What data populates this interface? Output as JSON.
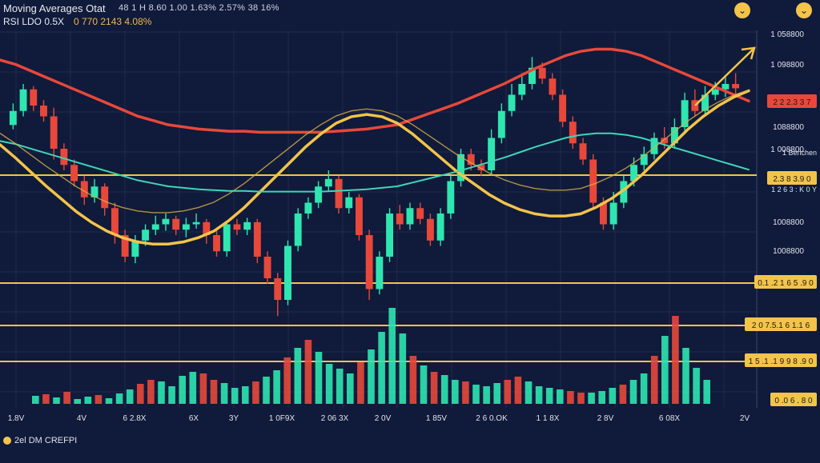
{
  "header": {
    "title": "Moving Averages Otat",
    "stats": "48 1 H 8.60 1.00   1.63% 2.57% 38 16%",
    "rsi_label": "RSI LDO 0.5X",
    "rsi_value": "0 770 2143 4.08%"
  },
  "icons": {
    "chevron": "chevron-down-icon",
    "chevron_glyph": "⌄"
  },
  "footer": {
    "label": "2el DM CREFPI"
  },
  "colors": {
    "background": "#101a3a",
    "bull": "#2ee6b0",
    "bear": "#e8483a",
    "ma_yellow": "#f3c44a",
    "ma_red": "#e8483a",
    "ma_teal": "#3fd6b8",
    "grid": "#1f2a4f",
    "level": "#f3c44a",
    "badge_red": "#e8483a",
    "badge_yellow": "#f3c44a"
  },
  "chart_data": {
    "type": "candlestick",
    "price_axis_labels": [
      "1 058800",
      "1 098800",
      "1088800",
      "1 008800",
      "1008800",
      "1008800"
    ],
    "time_axis_labels": [
      "1.8V",
      "4V",
      "6 2.8X",
      "6X",
      "3Y",
      "1 0F9X",
      "2 06 3X",
      "2 0V",
      "1 85V",
      "2 6 0.OK",
      "1 1 8X",
      "2 8V",
      "6 08X",
      "2V"
    ],
    "price_badges": [
      {
        "text": "2 2 2.3 3 7",
        "kind": "red"
      },
      {
        "text": "2.3 8 3.9 0",
        "kind": "yellow"
      },
      {
        "text": "0.1 .2 1 6 5 .9 0",
        "kind": "yellow"
      },
      {
        "text": "2 0 7.5.1 6 1.1 6",
        "kind": "yellow"
      },
      {
        "text": "1 5 .1 .1 9 9 8 .9 0",
        "kind": "yellow"
      },
      {
        "text": "0 .0 6 . 8 0",
        "kind": "yellow"
      }
    ],
    "side_label": "1 Benchen",
    "side_label2": "1 2 6 3 : K 0 Y",
    "candles": [
      [
        62,
        75,
        58,
        82,
        "b"
      ],
      [
        75,
        95,
        70,
        100,
        "b"
      ],
      [
        95,
        80,
        75,
        98,
        "r"
      ],
      [
        80,
        70,
        65,
        85,
        "r"
      ],
      [
        70,
        40,
        30,
        78,
        "r"
      ],
      [
        40,
        25,
        20,
        45,
        "r"
      ],
      [
        25,
        10,
        5,
        30,
        "r"
      ],
      [
        10,
        -5,
        -12,
        15,
        "r"
      ],
      [
        -5,
        5,
        -10,
        12,
        "b"
      ],
      [
        5,
        -15,
        -22,
        8,
        "r"
      ],
      [
        -15,
        -40,
        -48,
        -10,
        "r"
      ],
      [
        -40,
        -60,
        -65,
        -35,
        "r"
      ],
      [
        -60,
        -45,
        -66,
        -40,
        "b"
      ],
      [
        -45,
        -35,
        -50,
        -30,
        "b"
      ],
      [
        -35,
        -30,
        -40,
        -22,
        "b"
      ],
      [
        -30,
        -25,
        -36,
        -20,
        "b"
      ],
      [
        -25,
        -35,
        -40,
        -22,
        "r"
      ],
      [
        -35,
        -30,
        -42,
        -24,
        "b"
      ],
      [
        -30,
        -28,
        -34,
        -20,
        "b"
      ],
      [
        -28,
        -40,
        -48,
        -25,
        "r"
      ],
      [
        -40,
        -55,
        -60,
        -35,
        "r"
      ],
      [
        -55,
        -30,
        -60,
        -28,
        "b"
      ],
      [
        -30,
        -35,
        -40,
        -25,
        "r"
      ],
      [
        -35,
        -28,
        -40,
        -24,
        "b"
      ],
      [
        -28,
        -60,
        -66,
        -25,
        "r"
      ],
      [
        -60,
        -80,
        -85,
        -55,
        "r"
      ],
      [
        -80,
        -100,
        -115,
        -75,
        "r"
      ],
      [
        -100,
        -50,
        -105,
        -45,
        "b"
      ],
      [
        -50,
        -20,
        -55,
        -15,
        "b"
      ],
      [
        -20,
        -10,
        -25,
        -5,
        "b"
      ],
      [
        -10,
        5,
        -15,
        10,
        "b"
      ],
      [
        5,
        12,
        0,
        20,
        "b"
      ],
      [
        12,
        -15,
        -20,
        15,
        "r"
      ],
      [
        -15,
        -5,
        -20,
        0,
        "b"
      ],
      [
        -5,
        -40,
        -45,
        -2,
        "r"
      ],
      [
        -40,
        -90,
        -100,
        -35,
        "r"
      ],
      [
        -90,
        -60,
        -95,
        -55,
        "b"
      ],
      [
        -60,
        -20,
        -65,
        -15,
        "b"
      ],
      [
        -20,
        -30,
        -35,
        -12,
        "r"
      ],
      [
        -30,
        -15,
        -35,
        -10,
        "b"
      ],
      [
        -15,
        -25,
        -30,
        -10,
        "r"
      ],
      [
        -25,
        -45,
        -50,
        -20,
        "r"
      ],
      [
        -45,
        -20,
        -50,
        -15,
        "b"
      ],
      [
        -20,
        10,
        -25,
        15,
        "b"
      ],
      [
        10,
        35,
        5,
        40,
        "b"
      ],
      [
        35,
        25,
        20,
        40,
        "r"
      ],
      [
        25,
        20,
        15,
        30,
        "r"
      ],
      [
        20,
        50,
        15,
        58,
        "b"
      ],
      [
        50,
        75,
        45,
        82,
        "b"
      ],
      [
        75,
        90,
        70,
        100,
        "b"
      ],
      [
        90,
        100,
        85,
        110,
        "b"
      ],
      [
        100,
        115,
        95,
        125,
        "b"
      ],
      [
        115,
        105,
        100,
        120,
        "r"
      ],
      [
        105,
        90,
        85,
        110,
        "r"
      ],
      [
        90,
        65,
        60,
        95,
        "r"
      ],
      [
        65,
        45,
        40,
        70,
        "r"
      ],
      [
        45,
        30,
        25,
        50,
        "r"
      ],
      [
        30,
        -10,
        -15,
        35,
        "r"
      ],
      [
        -10,
        -30,
        -35,
        -5,
        "r"
      ],
      [
        -30,
        -10,
        -35,
        0,
        "b"
      ],
      [
        -10,
        10,
        -15,
        15,
        "b"
      ],
      [
        10,
        25,
        5,
        32,
        "b"
      ],
      [
        25,
        35,
        20,
        42,
        "b"
      ],
      [
        35,
        50,
        30,
        55,
        "b"
      ],
      [
        50,
        45,
        40,
        60,
        "r"
      ],
      [
        45,
        60,
        40,
        68,
        "b"
      ],
      [
        60,
        85,
        55,
        92,
        "b"
      ],
      [
        85,
        75,
        70,
        95,
        "r"
      ],
      [
        75,
        90,
        70,
        98,
        "b"
      ],
      [
        90,
        95,
        85,
        102,
        "b"
      ],
      [
        95,
        100,
        88,
        108,
        "b"
      ],
      [
        100,
        96,
        90,
        110,
        "r"
      ]
    ],
    "ma_red": [
      100,
      96,
      90,
      84,
      78,
      72,
      66,
      60,
      54,
      48,
      44,
      40,
      38,
      36,
      35,
      34,
      34,
      33,
      33,
      33,
      33,
      33,
      34,
      35,
      36,
      38,
      40,
      45,
      50,
      55,
      60,
      66,
      72,
      78,
      85,
      92,
      98,
      104,
      108,
      110,
      110,
      108,
      104,
      98,
      92,
      86,
      80,
      74,
      68,
      62
    ],
    "ma_yellow": [
      40,
      28,
      15,
      2,
      -10,
      -22,
      -32,
      -40,
      -46,
      -50,
      -52,
      -52,
      -50,
      -46,
      -40,
      -30,
      -18,
      -4,
      10,
      24,
      38,
      50,
      60,
      66,
      68,
      66,
      60,
      50,
      38,
      26,
      14,
      4,
      -6,
      -14,
      -20,
      -24,
      -26,
      -26,
      -24,
      -18,
      -10,
      0,
      12,
      26,
      40,
      54,
      66,
      76,
      84,
      90
    ],
    "volumes": [
      10,
      12,
      8,
      15,
      6,
      9,
      11,
      7,
      13,
      18,
      25,
      30,
      28,
      22,
      35,
      40,
      38,
      30,
      26,
      20,
      22,
      28,
      34,
      42,
      58,
      70,
      80,
      65,
      50,
      44,
      38,
      52,
      68,
      90,
      120,
      88,
      60,
      48,
      40,
      36,
      30,
      28,
      24,
      22,
      26,
      30,
      34,
      28,
      22,
      20,
      18,
      16,
      14,
      14,
      16,
      20,
      24,
      30,
      38,
      60,
      85,
      110,
      70,
      45,
      30
    ]
  }
}
